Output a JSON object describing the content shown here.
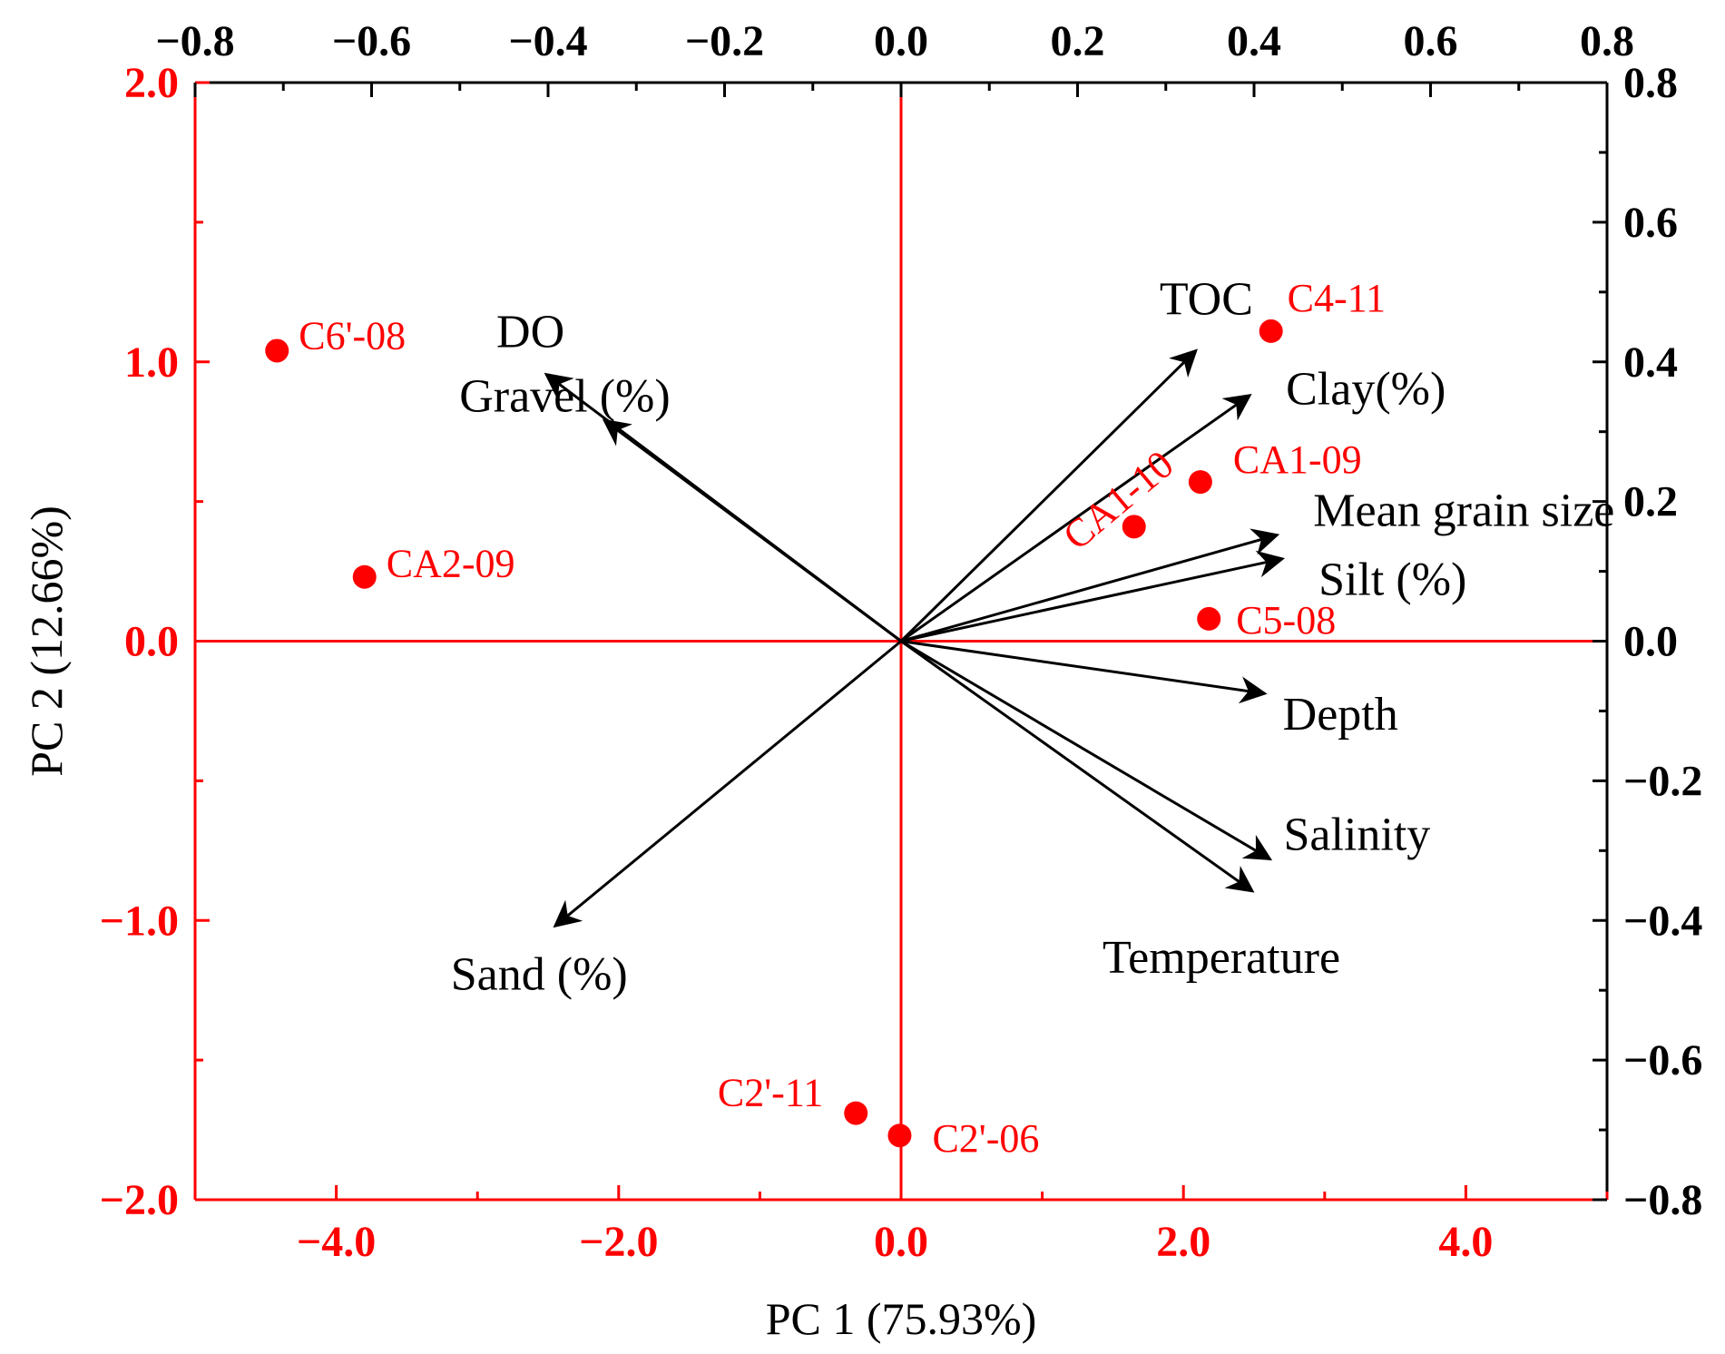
{
  "chart_data": {
    "type": "scatter",
    "subtype": "pca-biplot",
    "xlabel": "PC 1 (75.93%)",
    "ylabel": "PC 2 (12.66%)",
    "xlim": [
      -5.0,
      5.0
    ],
    "ylim": [
      -2.0,
      2.0
    ],
    "x_ticks": [
      "−4.0",
      "−2.0",
      "0.0",
      "2.0",
      "4.0"
    ],
    "y_ticks": [
      "−2.0",
      "−1.0",
      "0.0",
      "1.0",
      "2.0"
    ],
    "top_lim": [
      -0.8,
      0.8
    ],
    "top_ticks": [
      "−0.8",
      "−0.6",
      "−0.4",
      "−0.2",
      "0.0",
      "0.2",
      "0.4",
      "0.6",
      "0.8"
    ],
    "right_lim": [
      -0.8,
      0.8
    ],
    "right_ticks": [
      "−0.8",
      "−0.6",
      "−0.4",
      "−0.2",
      "0.0",
      "0.2",
      "0.4",
      "0.6",
      "0.8"
    ],
    "grid": false,
    "colors": {
      "samples": "#ff0000",
      "vectors": "#000000",
      "primary_axes": "#ff0000"
    },
    "points": [
      {
        "label": "C6'-08",
        "x": -4.42,
        "y": 1.04
      },
      {
        "label": "CA2-09",
        "x": -3.8,
        "y": 0.23
      },
      {
        "label": "C4-11",
        "x": 2.62,
        "y": 1.11
      },
      {
        "label": "CA1-09",
        "x": 2.12,
        "y": 0.57
      },
      {
        "label": "CA1-10",
        "x": 1.65,
        "y": 0.41
      },
      {
        "label": "C5-08",
        "x": 2.18,
        "y": 0.08
      },
      {
        "label": "C2'-11",
        "x": -0.32,
        "y": -1.69
      },
      {
        "label": "C2'-06",
        "x": -0.01,
        "y": -1.77
      }
    ],
    "vectors": [
      {
        "label": "DO",
        "x": -0.402,
        "y": 0.382
      },
      {
        "label": "Gravel (%)",
        "x": -0.336,
        "y": 0.316
      },
      {
        "label": "TOC",
        "x": 0.334,
        "y": 0.416
      },
      {
        "label": "Clay(%)",
        "x": 0.395,
        "y": 0.352
      },
      {
        "label": "Mean grain size",
        "x": 0.426,
        "y": 0.152
      },
      {
        "label": "Silt (%)",
        "x": 0.432,
        "y": 0.118
      },
      {
        "label": "Depth",
        "x": 0.412,
        "y": -0.075
      },
      {
        "label": "Salinity",
        "x": 0.418,
        "y": -0.312
      },
      {
        "label": "Temperature",
        "x": 0.398,
        "y": -0.358
      },
      {
        "label": "Sand (%)",
        "x": -0.392,
        "y": -0.408
      }
    ]
  }
}
